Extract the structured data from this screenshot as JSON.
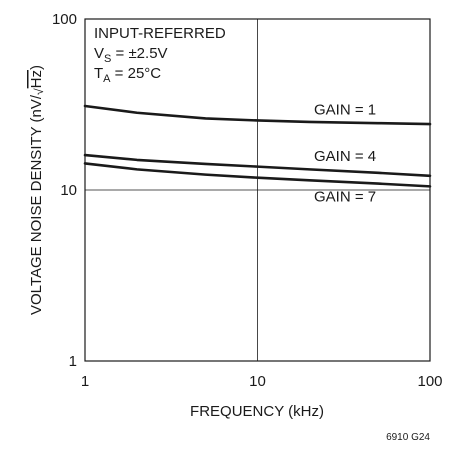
{
  "chart_data": {
    "type": "line",
    "title": "",
    "xlabel": "FREQUENCY (kHz)",
    "ylabel_main": "VOLTAGE NOISE DENSITY (nV/",
    "ylabel_radical_sign": "√",
    "ylabel_radicand": "Hz",
    "ylabel_close": ")",
    "xscale": "log",
    "yscale": "log",
    "xlim": [
      1,
      100
    ],
    "ylim": [
      1,
      100
    ],
    "x_ticks": [
      {
        "value": 1,
        "label": "1"
      },
      {
        "value": 10,
        "label": "10"
      },
      {
        "value": 100,
        "label": "100"
      }
    ],
    "y_ticks": [
      {
        "value": 1,
        "label": "1"
      },
      {
        "value": 10,
        "label": "10"
      },
      {
        "value": 100,
        "label": "100"
      }
    ],
    "grid": true,
    "annotation": {
      "line1": "INPUT-REFERRED",
      "line2_main": "V",
      "line2_sub": "S",
      "line2_rest": " = ±2.5V",
      "line3_main": "T",
      "line3_sub": "A",
      "line3_rest": " = 25°C"
    },
    "series": [
      {
        "name": "GAIN = 1",
        "x": [
          1,
          2,
          5,
          10,
          20,
          50,
          100
        ],
        "y": [
          31,
          28.3,
          26.2,
          25.5,
          25.0,
          24.6,
          24.3
        ]
      },
      {
        "name": "GAIN = 4",
        "x": [
          1,
          2,
          5,
          10,
          20,
          50,
          100
        ],
        "y": [
          16.0,
          15.0,
          14.2,
          13.7,
          13.2,
          12.6,
          12.1
        ]
      },
      {
        "name": "GAIN = 7",
        "x": [
          1,
          2,
          5,
          10,
          20,
          50,
          100
        ],
        "y": [
          14.3,
          13.2,
          12.3,
          11.8,
          11.4,
          10.9,
          10.5
        ]
      }
    ]
  },
  "footer_code": "6910 G24"
}
